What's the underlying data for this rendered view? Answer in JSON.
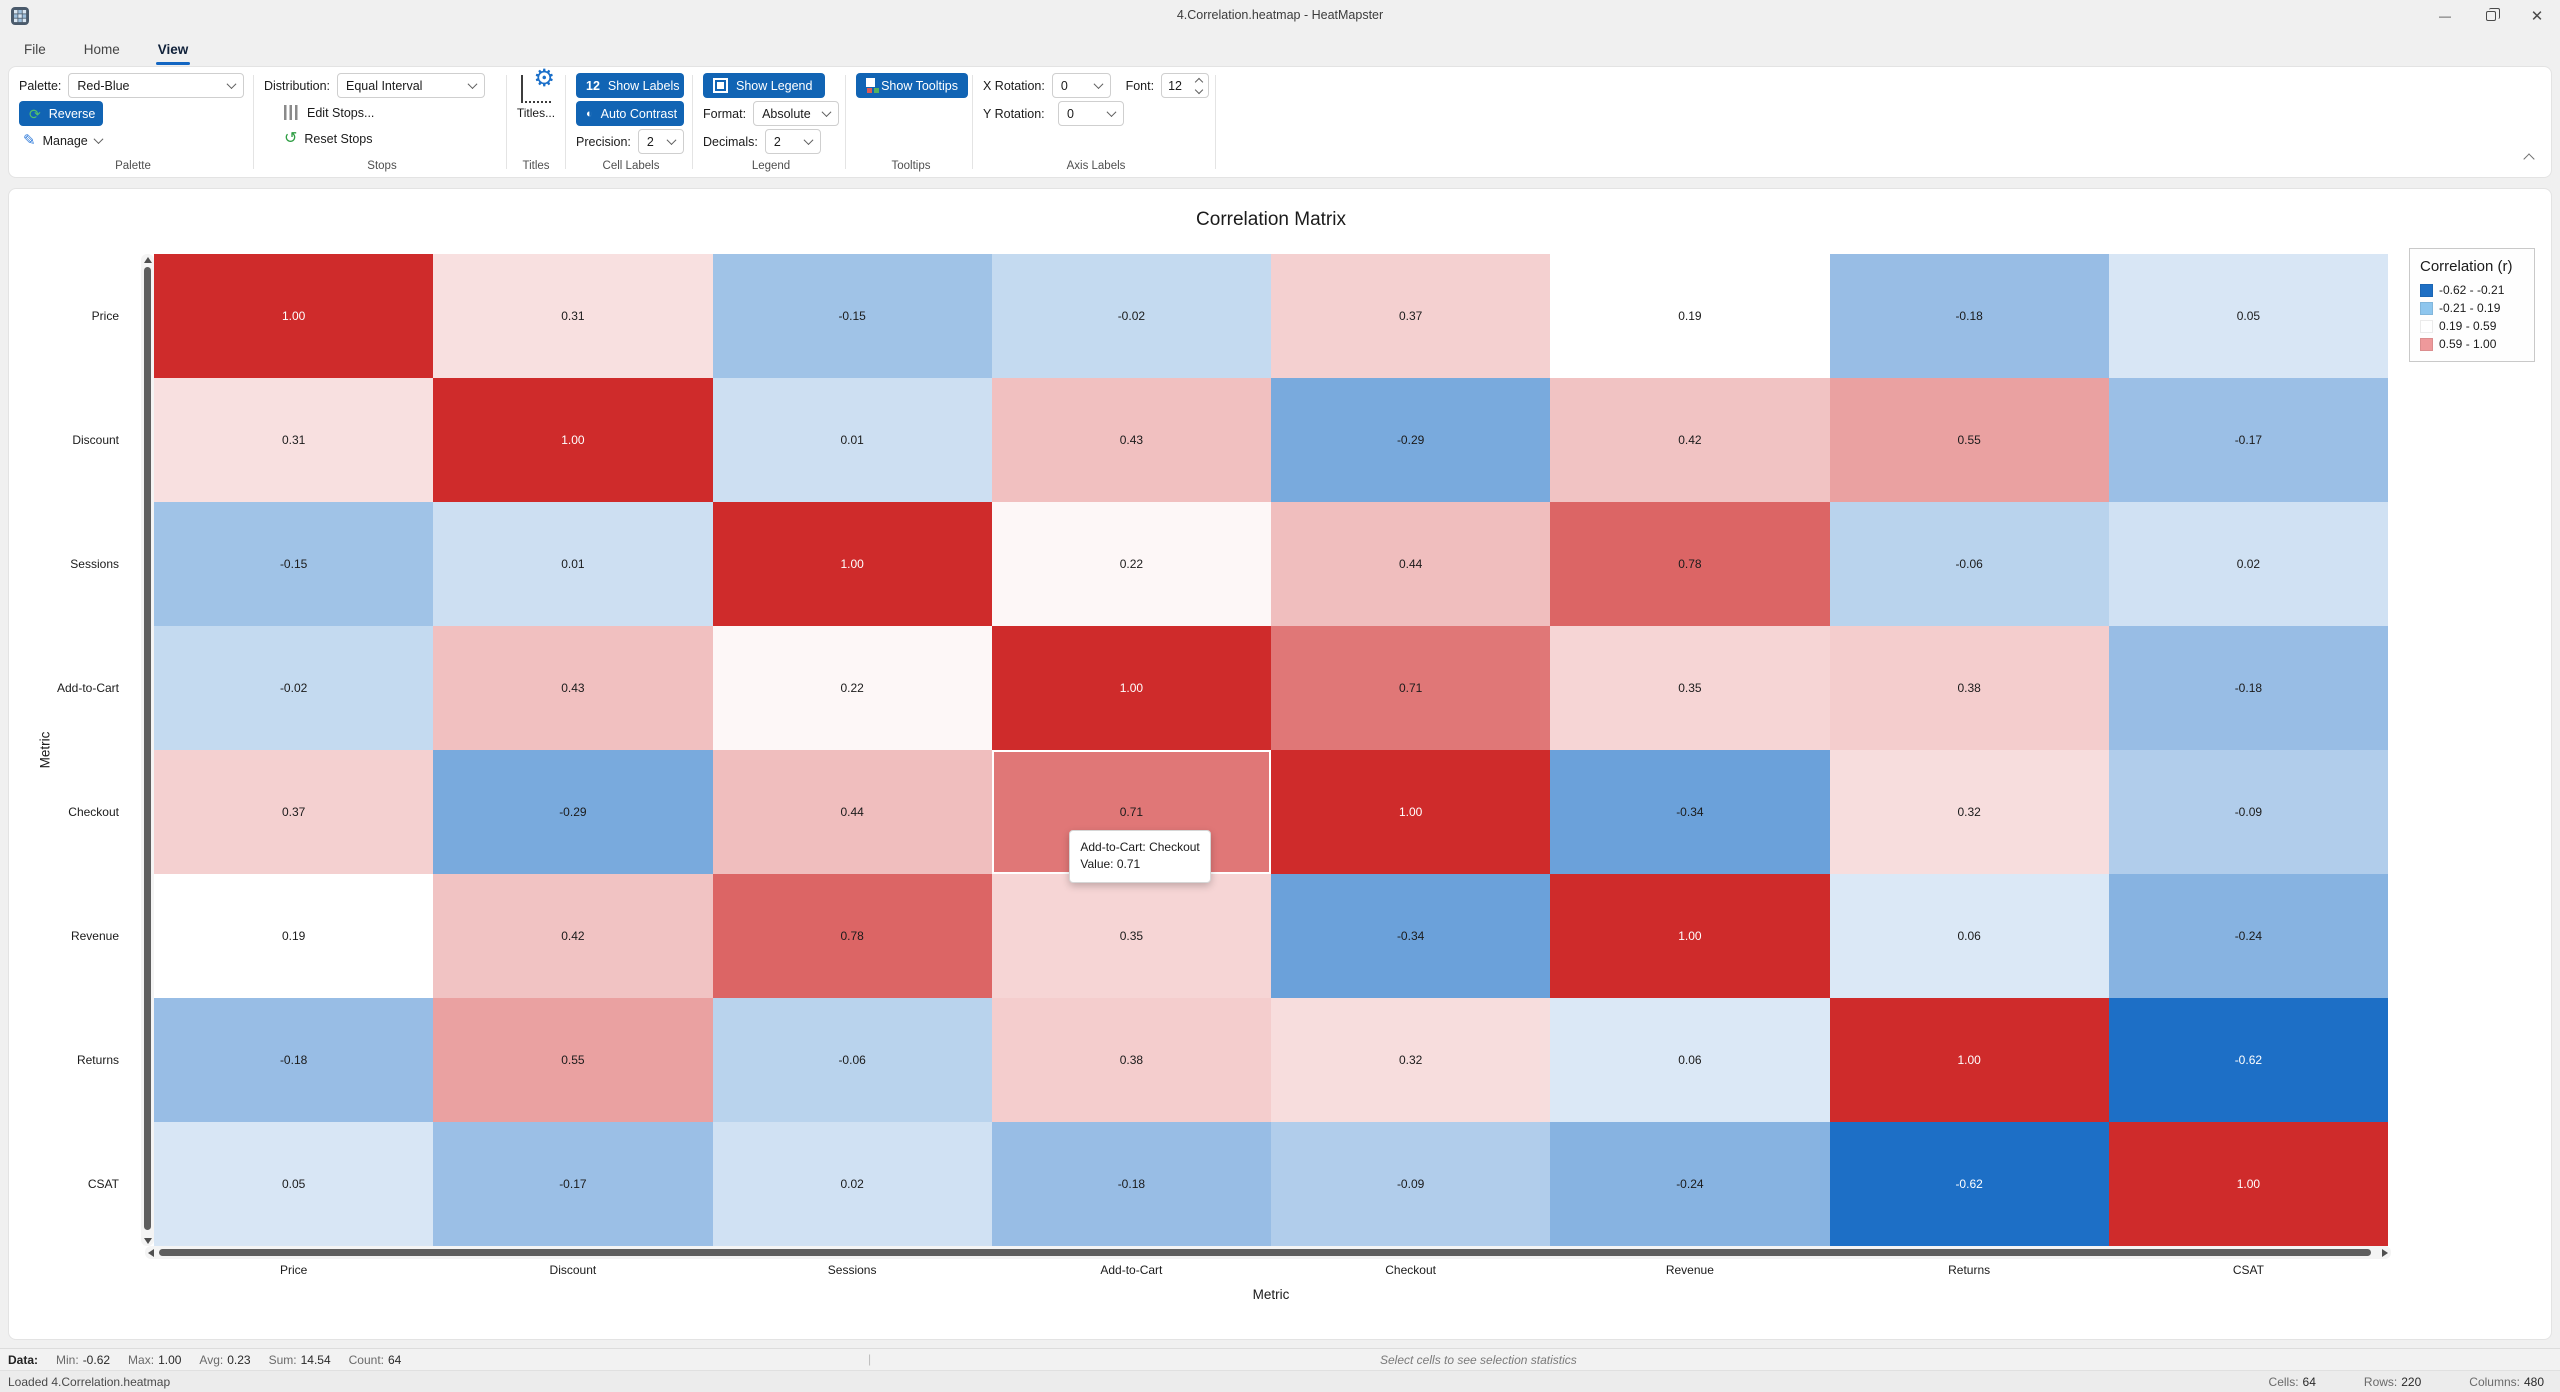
{
  "window": {
    "title": "4.Correlation.heatmap - HeatMapster"
  },
  "menu": {
    "tabs": [
      {
        "label": "File"
      },
      {
        "label": "Home"
      },
      {
        "label": "View"
      }
    ]
  },
  "ribbon": {
    "palette": {
      "label": "Palette:",
      "value": "Red-Blue",
      "reverse_label": "Reverse",
      "manage_label": "Manage",
      "section": "Palette"
    },
    "stops": {
      "distribution_label": "Distribution:",
      "distribution_value": "Equal Interval",
      "edit_stops_label": "Edit Stops...",
      "reset_stops_label": "Reset Stops",
      "section": "Stops"
    },
    "titles": {
      "button_label": "Titles...",
      "section": "Titles"
    },
    "cell_labels": {
      "badge": "12",
      "show_labels_label": "Show Labels",
      "auto_contrast_label": "Auto Contrast",
      "precision_label": "Precision:",
      "precision_value": "2",
      "section": "Cell Labels"
    },
    "legend": {
      "show_legend_label": "Show Legend",
      "format_label": "Format:",
      "format_value": "Absolute",
      "decimals_label": "Decimals:",
      "decimals_value": "2",
      "section": "Legend"
    },
    "tooltips": {
      "show_tooltips_label": "Show Tooltips",
      "section": "Tooltips"
    },
    "axis_labels": {
      "x_rotation_label": "X Rotation:",
      "x_rotation_value": "0",
      "y_rotation_label": "Y Rotation:",
      "y_rotation_value": "0",
      "font_label": "Font:",
      "font_value": "12",
      "section": "Axis Labels"
    }
  },
  "chart_data": {
    "type": "heatmap",
    "title": "Correlation Matrix",
    "xlabel": "Metric",
    "ylabel": "Metric",
    "categories": [
      "Price",
      "Discount",
      "Sessions",
      "Add-to-Cart",
      "Checkout",
      "Revenue",
      "Returns",
      "CSAT"
    ],
    "values": [
      [
        1.0,
        0.31,
        -0.15,
        -0.02,
        0.37,
        0.19,
        -0.18,
        0.05
      ],
      [
        0.31,
        1.0,
        0.01,
        0.43,
        -0.29,
        0.42,
        0.55,
        -0.17
      ],
      [
        -0.15,
        0.01,
        1.0,
        0.22,
        0.44,
        0.78,
        -0.06,
        0.02
      ],
      [
        -0.02,
        0.43,
        0.22,
        1.0,
        0.71,
        0.35,
        0.38,
        -0.18
      ],
      [
        0.37,
        -0.29,
        0.44,
        0.71,
        1.0,
        -0.34,
        0.32,
        -0.09
      ],
      [
        0.19,
        0.42,
        0.78,
        0.35,
        -0.34,
        1.0,
        0.06,
        -0.24
      ],
      [
        -0.18,
        0.55,
        -0.06,
        0.38,
        0.32,
        0.06,
        1.0,
        -0.62
      ],
      [
        0.05,
        -0.17,
        0.02,
        -0.18,
        -0.09,
        -0.24,
        -0.62,
        1.0
      ]
    ],
    "vmin": -0.62,
    "vmax": 1.0,
    "precision": 2,
    "colormap": {
      "name": "Red-Blue",
      "negative": "#1d6fc6",
      "positive": "#cf2b2b",
      "midpoint": 0.19
    },
    "legend": {
      "title": "Correlation (r)",
      "entries": [
        {
          "color": "#1e6fc4",
          "label": "-0.62 - -0.21"
        },
        {
          "color": "#8ec6ee",
          "label": "-0.21 - 0.19"
        },
        {
          "color": "#ffffff",
          "label": "0.19 - 0.59"
        },
        {
          "color": "#ee999b",
          "label": "0.59 - 1.00"
        }
      ]
    },
    "hover": {
      "row_index": 4,
      "col_index": 3,
      "row": "Checkout",
      "col": "Add-to-Cart",
      "tooltip_line1": "Add-to-Cart: Checkout",
      "tooltip_line2": "Value: 0.71"
    }
  },
  "status_bar": {
    "data_label": "Data:",
    "stats": [
      {
        "label": "Min:",
        "value": "-0.62"
      },
      {
        "label": "Max:",
        "value": "1.00"
      },
      {
        "label": "Avg:",
        "value": "0.23"
      },
      {
        "label": "Sum:",
        "value": "14.54"
      },
      {
        "label": "Count:",
        "value": "64"
      }
    ],
    "separator": "|",
    "selection_hint": "Select cells to see selection statistics",
    "loaded": "Loaded 4.Correlation.heatmap",
    "cells": {
      "label": "Cells:",
      "value": "64"
    },
    "rows": {
      "label": "Rows:",
      "value": "220"
    },
    "columns": {
      "label": "Columns:",
      "value": "480"
    }
  }
}
